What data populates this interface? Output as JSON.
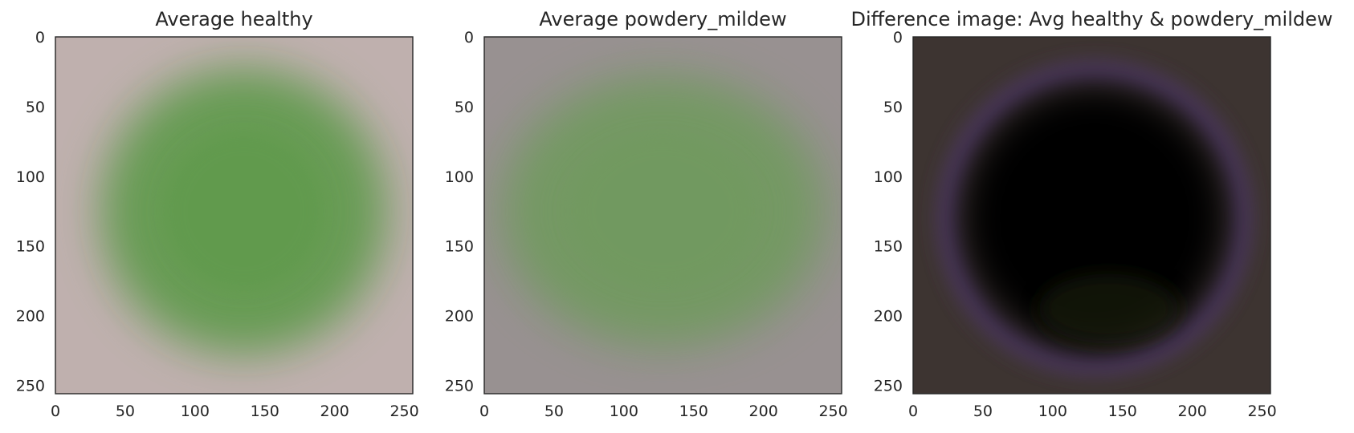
{
  "chart_data": [
    {
      "type": "heatmap",
      "title": "Average healthy",
      "xlim": [
        0,
        256
      ],
      "ylim": [
        256,
        0
      ],
      "xticks": [
        0,
        50,
        100,
        150,
        200,
        250
      ],
      "yticks": [
        0,
        50,
        100,
        150,
        200,
        250
      ],
      "grid": false,
      "background_color": "#bfb0ae",
      "blob_color": "#5e9a4c",
      "blob_center": [
        135,
        125
      ],
      "blob_radius": [
        95,
        95
      ]
    },
    {
      "type": "heatmap",
      "title": "Average powdery_mildew",
      "xlim": [
        0,
        256
      ],
      "ylim": [
        256,
        0
      ],
      "xticks": [
        0,
        50,
        100,
        150,
        200,
        250
      ],
      "yticks": [
        0,
        50,
        100,
        150,
        200,
        250
      ],
      "grid": false,
      "background_color": "#989191",
      "blob_color": "#719a5e",
      "blob_center": [
        128,
        125
      ],
      "blob_radius": [
        108,
        90
      ]
    },
    {
      "type": "heatmap",
      "title": "Difference image: Avg healthy & powdery_mildew",
      "xlim": [
        0,
        256
      ],
      "ylim": [
        256,
        0
      ],
      "xticks": [
        0,
        50,
        100,
        150,
        200,
        250
      ],
      "yticks": [
        0,
        50,
        100,
        150,
        200,
        250
      ],
      "grid": false,
      "background_color": "#3d3431",
      "blob_color": "#050505",
      "ring_color": "#5a3f78",
      "blob_center": [
        130,
        130
      ],
      "blob_radius": [
        100,
        100
      ]
    }
  ]
}
